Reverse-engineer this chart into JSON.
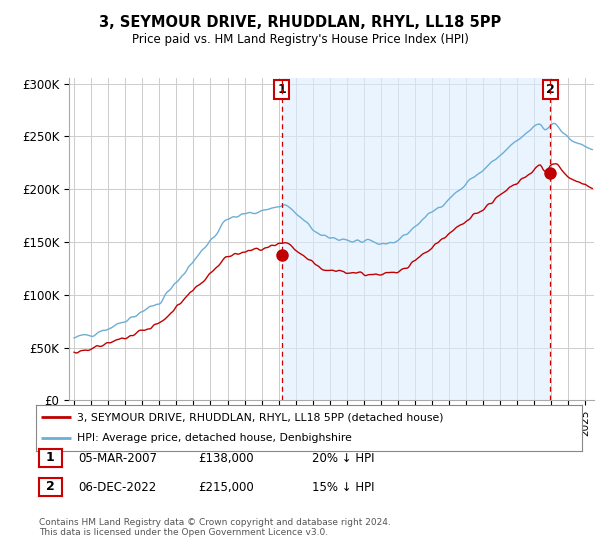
{
  "title": "3, SEYMOUR DRIVE, RHUDDLAN, RHYL, LL18 5PP",
  "subtitle": "Price paid vs. HM Land Registry's House Price Index (HPI)",
  "ylabel_ticks": [
    "£0",
    "£50K",
    "£100K",
    "£150K",
    "£200K",
    "£250K",
    "£300K"
  ],
  "ytick_values": [
    0,
    50000,
    100000,
    150000,
    200000,
    250000,
    300000
  ],
  "ylim": [
    0,
    305000
  ],
  "xlim_start": 1994.7,
  "xlim_end": 2025.5,
  "hpi_color": "#6baed6",
  "price_color": "#c00000",
  "vline_color": "#cc0000",
  "shade_color": "#ddeeff",
  "sale1_x": 2007.17,
  "sale1_y": 138000,
  "sale1_label": "1",
  "sale2_x": 2022.92,
  "sale2_y": 215000,
  "sale2_label": "2",
  "legend_line1": "3, SEYMOUR DRIVE, RHUDDLAN, RHYL, LL18 5PP (detached house)",
  "legend_line2": "HPI: Average price, detached house, Denbighshire",
  "footnote": "Contains HM Land Registry data © Crown copyright and database right 2024.\nThis data is licensed under the Open Government Licence v3.0.",
  "bg_color": "#ffffff",
  "plot_bg_color": "#ffffff",
  "grid_color": "#cccccc"
}
